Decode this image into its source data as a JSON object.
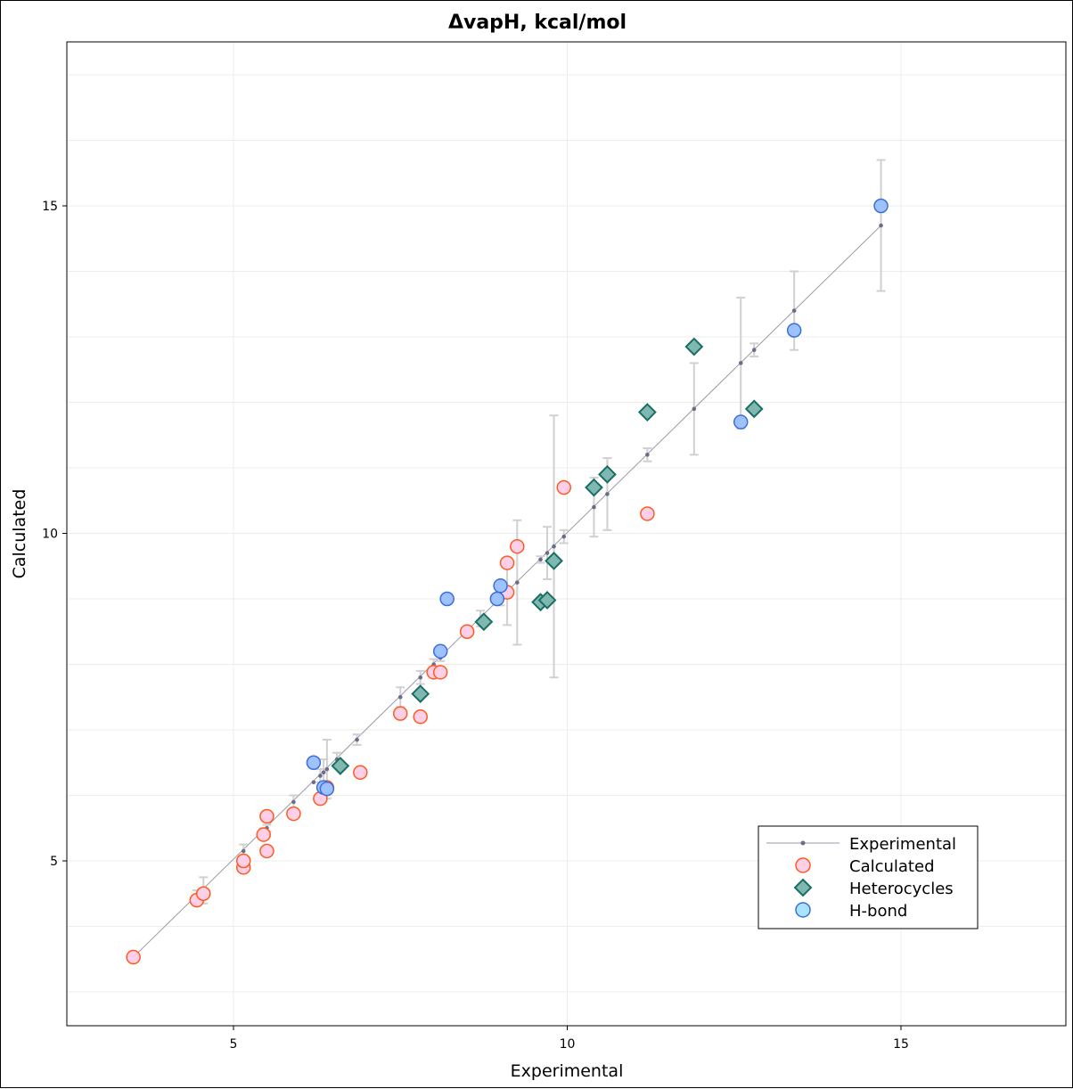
{
  "chart_data": {
    "type": "scatter",
    "title": "ΔvapH, kcal/mol",
    "xlabel": "Experimental",
    "ylabel": "Calculated",
    "xlim": [
      2.5,
      17.5
    ],
    "ylim": [
      2.5,
      17.5
    ],
    "xticks": [
      5,
      10,
      15
    ],
    "yticks": [
      5,
      10,
      15
    ],
    "grid": true,
    "legend_position": "bottom-right",
    "colors": {
      "experimental_line": "#9a9aa8",
      "experimental_point": "#6b6b8c",
      "calculated_fill": "#ffcfe8",
      "calculated_edge": "#ff5a1f",
      "heterocycles_fill": "#7fb8b0",
      "heterocycles_edge": "#1a6e63",
      "hbond_fill": "#9ec1ff",
      "hbond_edge": "#3a6ed9",
      "hbond_legend_fill": "#a8e4ff",
      "errorbar": "#d0d0d0",
      "grid": "#ececec"
    },
    "legend": [
      {
        "key": "experimental",
        "label": "Experimental"
      },
      {
        "key": "calculated",
        "label": "Calculated"
      },
      {
        "key": "heterocycles",
        "label": "Heterocycles"
      },
      {
        "key": "hbond",
        "label": "H-bond"
      }
    ],
    "experimental_line": [
      [
        3.5,
        3.53
      ],
      [
        14.7,
        14.7
      ]
    ],
    "experimental": [
      {
        "x": 3.5,
        "err": 0
      },
      {
        "x": 4.45,
        "err": 0.1
      },
      {
        "x": 4.55,
        "err": 0.2
      },
      {
        "x": 5.15,
        "err": 0.1
      },
      {
        "x": 5.45,
        "err": 0.05
      },
      {
        "x": 5.5,
        "err": 0.05
      },
      {
        "x": 5.9,
        "err": 0.1
      },
      {
        "x": 6.2,
        "err": 0
      },
      {
        "x": 6.3,
        "err": 0.1
      },
      {
        "x": 6.35,
        "err": 0.2
      },
      {
        "x": 6.4,
        "err": 0.45
      },
      {
        "x": 6.55,
        "err": 0.1
      },
      {
        "x": 6.85,
        "err": 0.08
      },
      {
        "x": 7.5,
        "err": 0.15
      },
      {
        "x": 7.8,
        "err": 0.1
      },
      {
        "x": 8.0,
        "err": 0.08
      },
      {
        "x": 8.1,
        "err": 0.05
      },
      {
        "x": 8.5,
        "err": 0.05
      },
      {
        "x": 8.7,
        "err": 0.12
      },
      {
        "x": 9.0,
        "err": 0.1
      },
      {
        "x": 9.1,
        "err": 0.5
      },
      {
        "x": 9.25,
        "err": 0.95
      },
      {
        "x": 9.6,
        "err": 0.05
      },
      {
        "x": 9.7,
        "err": 0.4
      },
      {
        "x": 9.8,
        "err": 2.0
      },
      {
        "x": 9.95,
        "err": 0.1
      },
      {
        "x": 10.4,
        "err": 0.45
      },
      {
        "x": 10.6,
        "err": 0.55
      },
      {
        "x": 11.2,
        "err": 0.1
      },
      {
        "x": 11.9,
        "err": 0.7
      },
      {
        "x": 12.6,
        "err": 1.0
      },
      {
        "x": 12.8,
        "err": 0.1
      },
      {
        "x": 13.4,
        "err": 0.6
      },
      {
        "x": 14.7,
        "err": 1.0
      }
    ],
    "calculated": [
      {
        "x": 3.5,
        "y": 3.53
      },
      {
        "x": 4.45,
        "y": 4.4
      },
      {
        "x": 4.55,
        "y": 4.5
      },
      {
        "x": 5.15,
        "y": 4.9
      },
      {
        "x": 5.15,
        "y": 5.0
      },
      {
        "x": 5.45,
        "y": 5.4
      },
      {
        "x": 5.5,
        "y": 5.68
      },
      {
        "x": 5.5,
        "y": 5.15
      },
      {
        "x": 5.9,
        "y": 5.72
      },
      {
        "x": 6.3,
        "y": 5.95
      },
      {
        "x": 6.4,
        "y": 6.12
      },
      {
        "x": 6.9,
        "y": 6.35
      },
      {
        "x": 7.5,
        "y": 7.25
      },
      {
        "x": 7.8,
        "y": 7.2
      },
      {
        "x": 8.0,
        "y": 7.88
      },
      {
        "x": 8.1,
        "y": 7.88
      },
      {
        "x": 8.5,
        "y": 8.5
      },
      {
        "x": 9.1,
        "y": 9.1
      },
      {
        "x": 9.1,
        "y": 9.55
      },
      {
        "x": 9.25,
        "y": 9.8
      },
      {
        "x": 9.95,
        "y": 10.7
      },
      {
        "x": 11.2,
        "y": 10.3
      }
    ],
    "heterocycles": [
      {
        "x": 6.6,
        "y": 6.45
      },
      {
        "x": 7.8,
        "y": 7.55
      },
      {
        "x": 8.75,
        "y": 8.65
      },
      {
        "x": 9.6,
        "y": 8.95
      },
      {
        "x": 9.7,
        "y": 8.98
      },
      {
        "x": 9.8,
        "y": 9.58
      },
      {
        "x": 10.4,
        "y": 10.7
      },
      {
        "x": 10.6,
        "y": 10.9
      },
      {
        "x": 11.2,
        "y": 11.85
      },
      {
        "x": 11.9,
        "y": 12.85
      },
      {
        "x": 12.8,
        "y": 11.9
      }
    ],
    "hbond": [
      {
        "x": 6.2,
        "y": 6.5
      },
      {
        "x": 6.35,
        "y": 6.12
      },
      {
        "x": 6.4,
        "y": 6.1
      },
      {
        "x": 8.1,
        "y": 8.2
      },
      {
        "x": 8.2,
        "y": 9.0
      },
      {
        "x": 8.95,
        "y": 9.0
      },
      {
        "x": 9.0,
        "y": 9.2
      },
      {
        "x": 12.6,
        "y": 11.7
      },
      {
        "x": 13.4,
        "y": 13.1
      },
      {
        "x": 14.7,
        "y": 15.0
      }
    ]
  }
}
